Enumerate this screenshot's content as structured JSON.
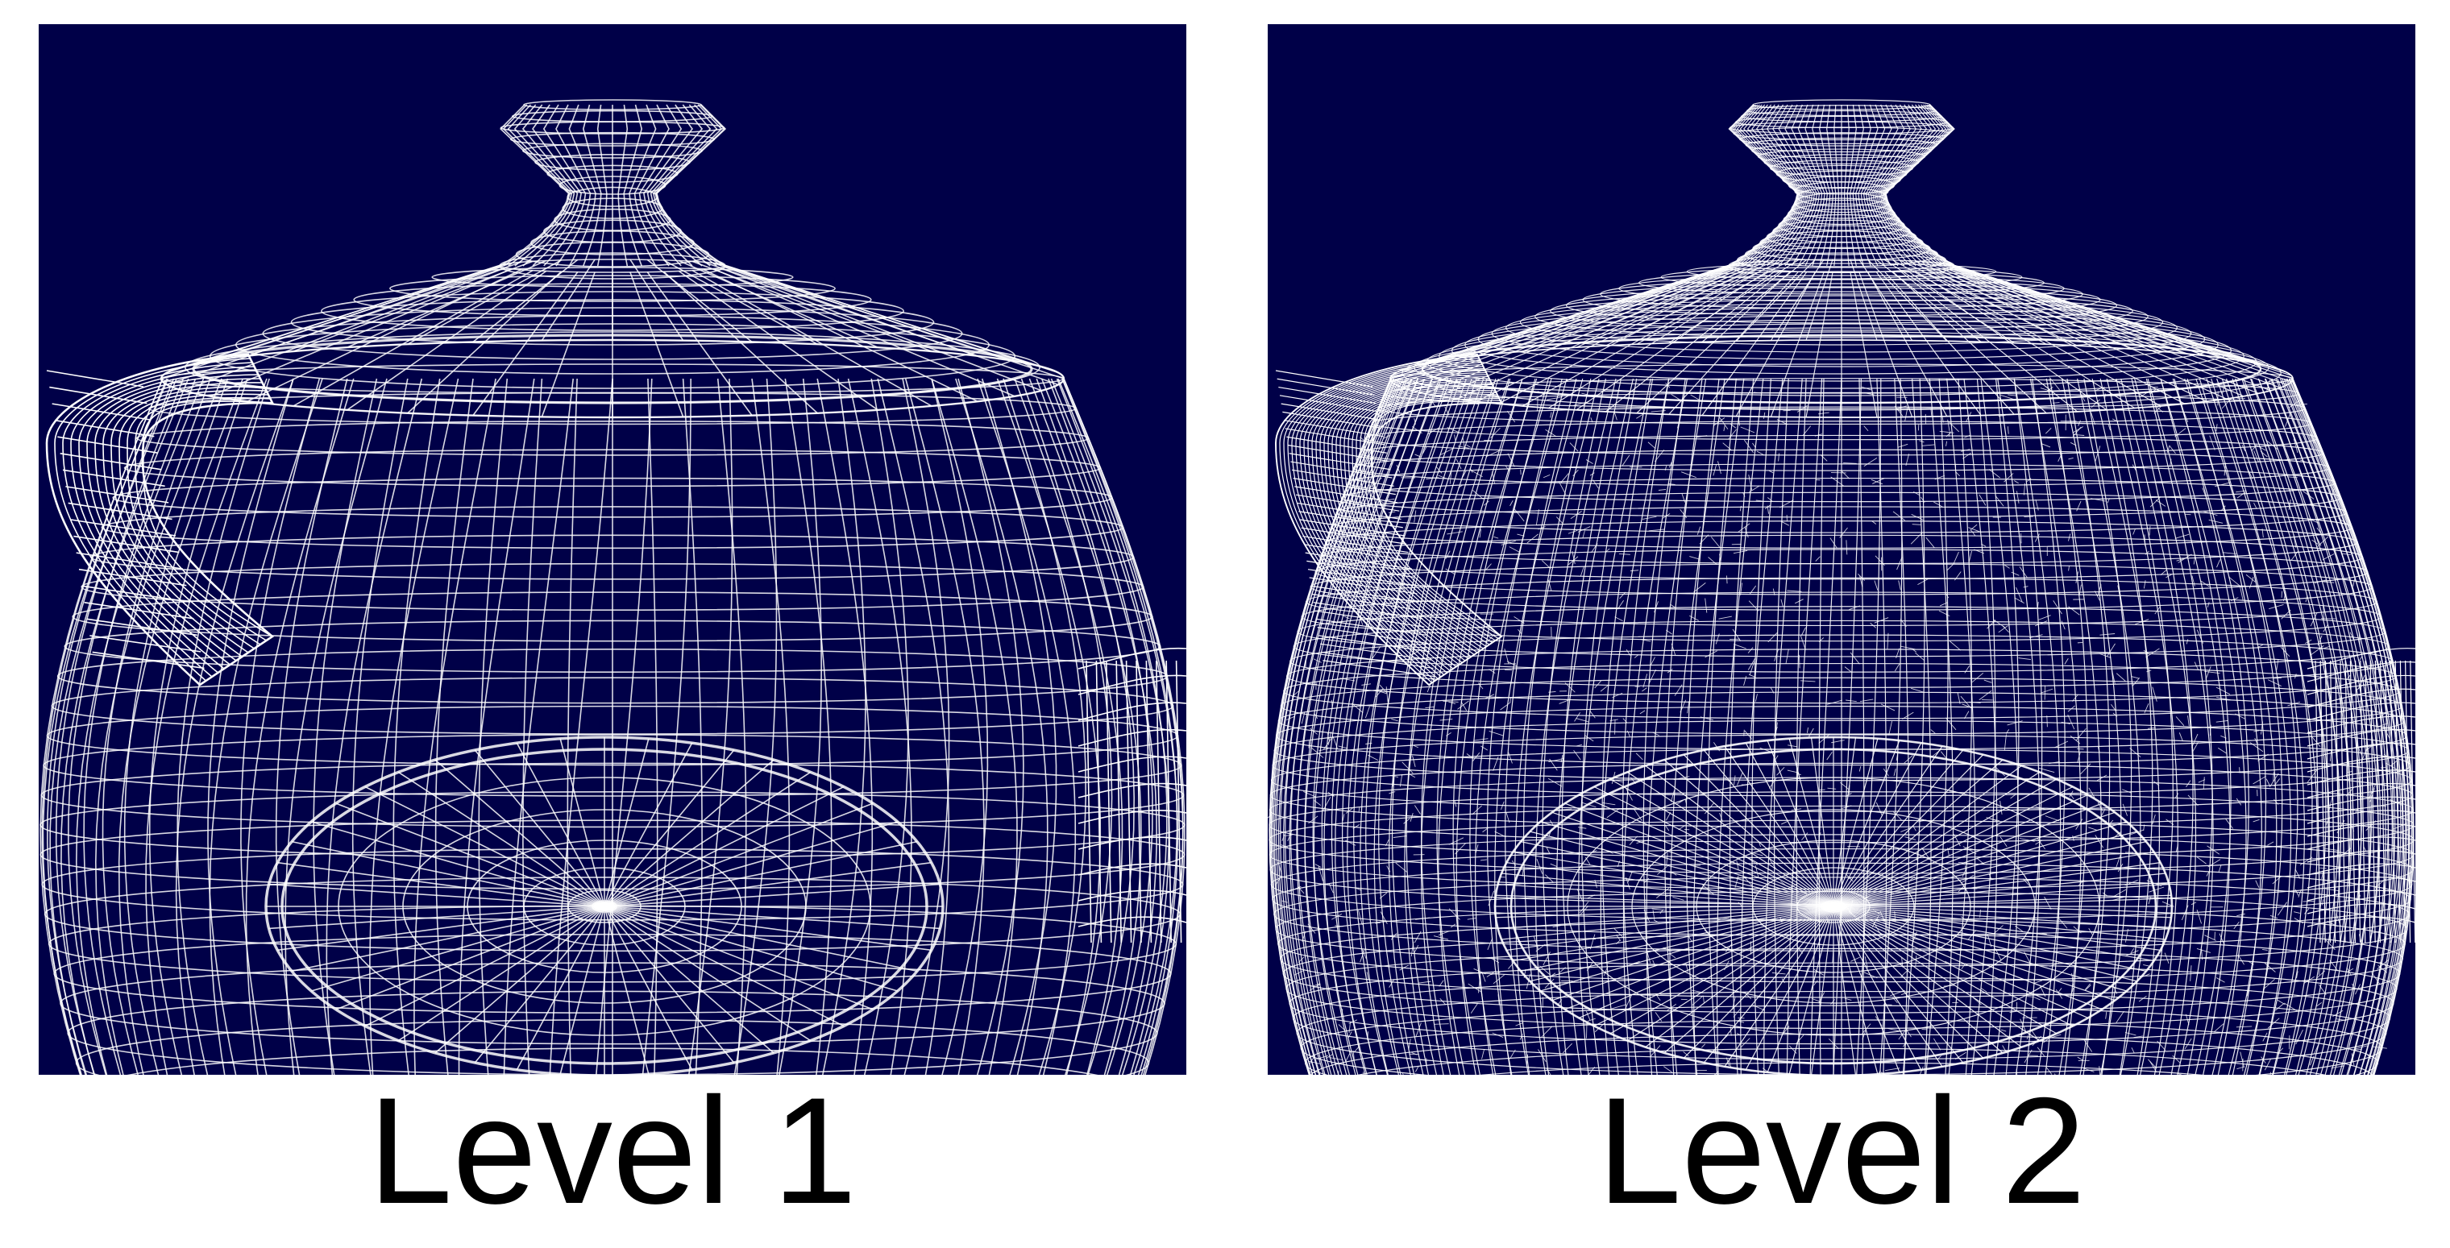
{
  "panels": [
    {
      "id": "level-1",
      "label": "Level 1",
      "density": 1
    },
    {
      "id": "level-2",
      "label": "Level 2",
      "density": 2
    }
  ],
  "colors": {
    "background": "#000048",
    "wire": "#ffffff",
    "page": "#ffffff",
    "label_text": "#000000"
  },
  "subject": "teapot-wireframe"
}
